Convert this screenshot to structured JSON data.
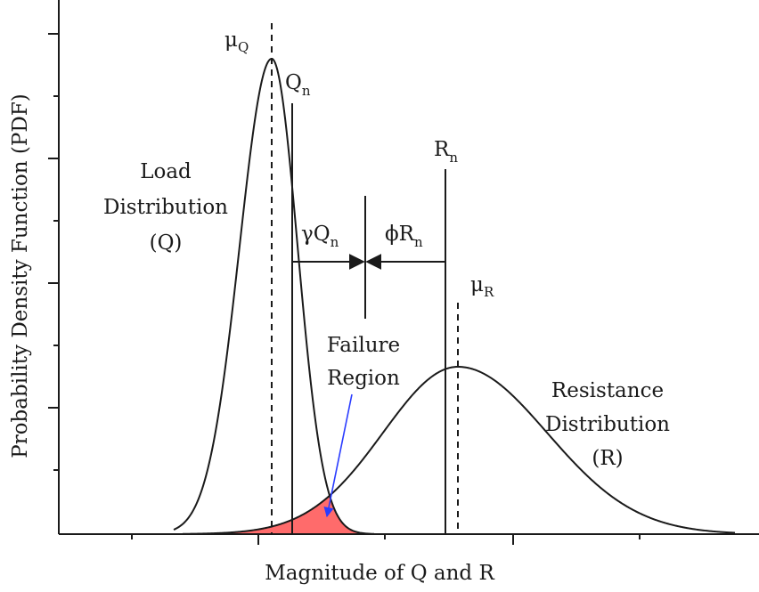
{
  "axes": {
    "xlabel": "Magnitude of Q and R",
    "ylabel": "Probability Density Function (PDF)"
  },
  "load": {
    "line1": "Load",
    "line2": "Distribution",
    "line3": "(Q)",
    "mean_symbol": "μ",
    "mean_sub": "Q",
    "nominal_symbol": "Q",
    "nominal_sub": "n"
  },
  "resistance": {
    "line1": "Resistance",
    "line2": "Distribution",
    "line3": "(R)",
    "mean_symbol": "μ",
    "mean_sub": "R",
    "nominal_symbol": "R",
    "nominal_sub": "n"
  },
  "factored": {
    "load_text": "γQ",
    "load_sub": "n",
    "resistance_text": "ϕR",
    "resistance_sub": "n"
  },
  "failure": {
    "line1": "Failure",
    "line2": "Region",
    "fill_color": "#ff6b6b",
    "arrow_color": "#2a3cff"
  }
}
